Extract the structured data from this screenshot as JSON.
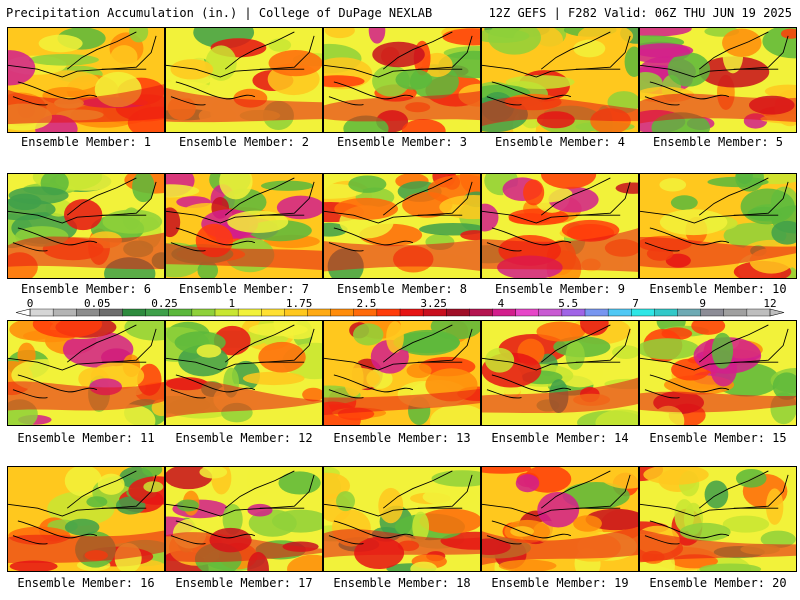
{
  "header": {
    "left_title": "Precipitation Accumulation (in.) | College of DuPage NEXLAB",
    "right_title": "12Z GEFS | F282 Valid: 06Z THU JUN 19 2025"
  },
  "panels": [
    {
      "label": "Ensemble Member: 1"
    },
    {
      "label": "Ensemble Member: 2"
    },
    {
      "label": "Ensemble Member: 3"
    },
    {
      "label": "Ensemble Member: 4"
    },
    {
      "label": "Ensemble Member: 5"
    },
    {
      "label": "Ensemble Member: 6"
    },
    {
      "label": "Ensemble Member: 7"
    },
    {
      "label": "Ensemble Member: 8"
    },
    {
      "label": "Ensemble Member: 9"
    },
    {
      "label": "Ensemble Member: 10"
    },
    {
      "label": "Ensemble Member: 11"
    },
    {
      "label": "Ensemble Member: 12"
    },
    {
      "label": "Ensemble Member: 13"
    },
    {
      "label": "Ensemble Member: 14"
    },
    {
      "label": "Ensemble Member: 15"
    },
    {
      "label": "Ensemble Member: 16"
    },
    {
      "label": "Ensemble Member: 17"
    },
    {
      "label": "Ensemble Member: 18"
    },
    {
      "label": "Ensemble Member: 19"
    },
    {
      "label": "Ensemble Member: 20"
    }
  ],
  "colorbar": {
    "labels": [
      "0",
      "0.05",
      "0.25",
      "1",
      "1.75",
      "2.5",
      "3.25",
      "4",
      "5.5",
      "7",
      "9",
      "12"
    ],
    "colors": [
      "#d6d6d6",
      "#b4b4b4",
      "#8c8c8c",
      "#6e6e6e",
      "#2e8b3e",
      "#3fa04a",
      "#5cb83c",
      "#8fd13a",
      "#c8e632",
      "#f2f23a",
      "#ffe033",
      "#ffc81e",
      "#ffaa14",
      "#ff8c0a",
      "#ff6a0a",
      "#ff3c0a",
      "#e61414",
      "#c80f1e",
      "#a00f28",
      "#b41450",
      "#d21e8c",
      "#e646c8",
      "#c85ad2",
      "#a064e6",
      "#7896f0",
      "#50c8f5",
      "#2ee6e6",
      "#32c8c8",
      "#6eaab4",
      "#8c8c96",
      "#a0a0a0",
      "#bebebe"
    ]
  }
}
